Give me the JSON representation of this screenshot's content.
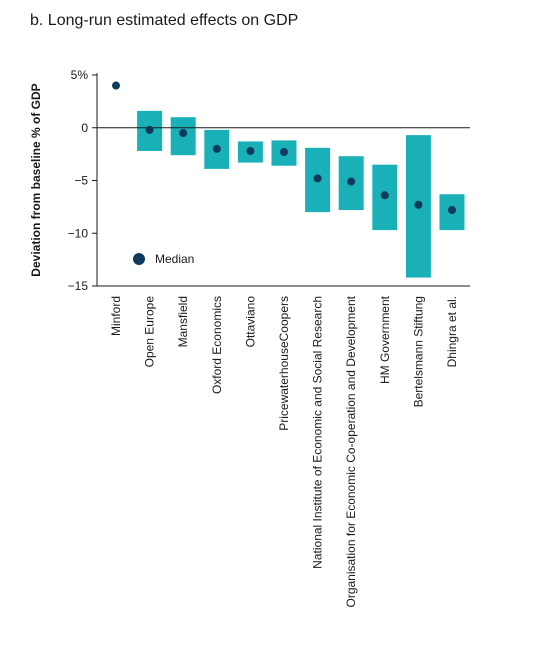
{
  "chart_data": {
    "type": "range-bar with median markers",
    "title": "b. Long-run estimated effects on GDP",
    "ylabel": "Deviation from baseline % of GDP",
    "xlabel": "",
    "ylim": [
      -15,
      5
    ],
    "yticks": [
      5,
      0,
      -5,
      -10,
      -15
    ],
    "ytick_labels": [
      "5%",
      "0",
      "−5",
      "−10",
      "−15"
    ],
    "grid": false,
    "legend": {
      "label": "Median",
      "placement": "lower-left"
    },
    "colors": {
      "range": "#1ab0b8",
      "median": "#0e3a5e"
    },
    "categories": [
      "Minford",
      "Open Europe",
      "Mansfield",
      "Oxford Economics",
      "Ottaviano",
      "PricewaterhouseCoopers",
      "National Institute of Economic and Social Research",
      "Organisation for Economic Co-operation and Development",
      "HM Government",
      "Bertelsmann Stiftung",
      "Dhingra et al."
    ],
    "series": [
      {
        "name": "Median",
        "values": [
          4.0,
          -0.2,
          -0.5,
          -2.0,
          -2.2,
          -2.3,
          -4.8,
          -5.1,
          -6.4,
          -7.3,
          -7.8
        ]
      }
    ],
    "ranges": [
      null,
      [
        -2.2,
        1.6
      ],
      [
        -2.6,
        1.0
      ],
      [
        -3.9,
        -0.2
      ],
      [
        -3.3,
        -1.3
      ],
      [
        -3.6,
        -1.2
      ],
      [
        -8.0,
        -1.9
      ],
      [
        -7.8,
        -2.7
      ],
      [
        -9.7,
        -3.5
      ],
      [
        -14.2,
        -0.7
      ],
      [
        -9.7,
        -6.3
      ]
    ]
  }
}
